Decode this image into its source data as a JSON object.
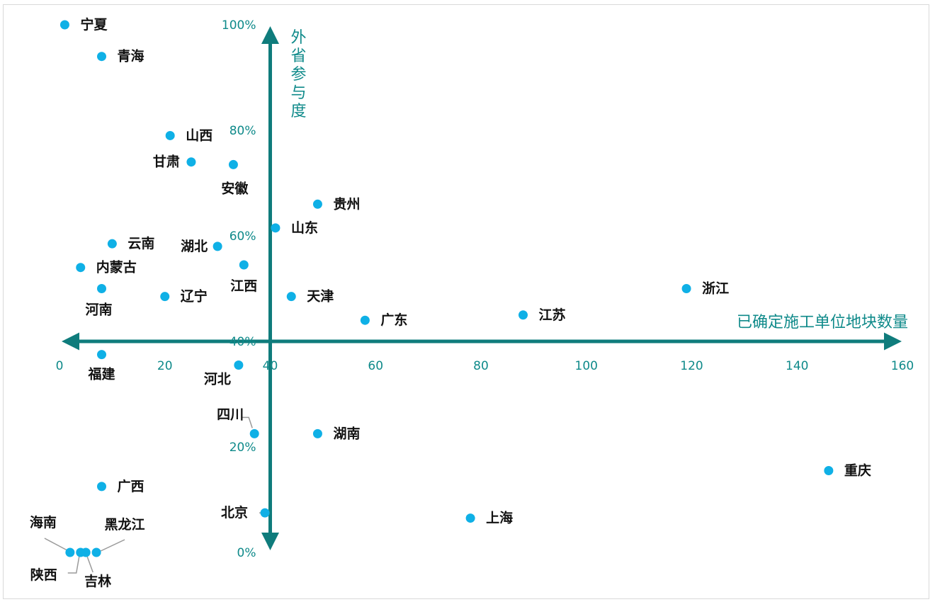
{
  "colors": {
    "axis": "#0f7c7c",
    "tick": "#0f8a8a",
    "point": "#0fb0e6",
    "leader": "#9a9a9a",
    "label": "#111111"
  },
  "chart_data": {
    "type": "scatter",
    "title": "",
    "xlabel": "已确定施工单位地块数量",
    "ylabel": "外省参与度",
    "xlim": [
      0,
      160
    ],
    "ylim": [
      0,
      100
    ],
    "x_ticks": [
      "0",
      "20",
      "40",
      "60",
      "80",
      "100",
      "120",
      "140",
      "160"
    ],
    "y_ticks": [
      "0%",
      "20%",
      "40%",
      "60%",
      "80%",
      "100%"
    ],
    "crosshair": {
      "x": 40,
      "y": 40
    },
    "points": [
      {
        "name": "宁夏",
        "x": 1,
        "y": 100
      },
      {
        "name": "青海",
        "x": 8,
        "y": 94
      },
      {
        "name": "山西",
        "x": 21,
        "y": 79
      },
      {
        "name": "甘肃",
        "x": 25,
        "y": 74
      },
      {
        "name": "安徽",
        "x": 33,
        "y": 73.5
      },
      {
        "name": "贵州",
        "x": 49,
        "y": 66
      },
      {
        "name": "山东",
        "x": 41,
        "y": 61.5
      },
      {
        "name": "云南",
        "x": 10,
        "y": 58.5
      },
      {
        "name": "湖北",
        "x": 30,
        "y": 58
      },
      {
        "name": "内蒙古",
        "x": 4,
        "y": 54
      },
      {
        "name": "江西",
        "x": 35,
        "y": 54.5
      },
      {
        "name": "河南",
        "x": 8,
        "y": 50
      },
      {
        "name": "辽宁",
        "x": 20,
        "y": 48.5
      },
      {
        "name": "天津",
        "x": 44,
        "y": 48.5
      },
      {
        "name": "浙江",
        "x": 119,
        "y": 50
      },
      {
        "name": "江苏",
        "x": 88,
        "y": 45
      },
      {
        "name": "广东",
        "x": 58,
        "y": 44
      },
      {
        "name": "福建",
        "x": 8,
        "y": 37.5
      },
      {
        "name": "河北",
        "x": 34,
        "y": 35.5
      },
      {
        "name": "四川",
        "x": 37,
        "y": 22.5
      },
      {
        "name": "湖南",
        "x": 49,
        "y": 22.5
      },
      {
        "name": "重庆",
        "x": 146,
        "y": 15.5
      },
      {
        "name": "广西",
        "x": 8,
        "y": 12.5
      },
      {
        "name": "北京",
        "x": 39,
        "y": 7.5
      },
      {
        "name": "上海",
        "x": 78,
        "y": 6.5
      },
      {
        "name": "海南",
        "x": 2,
        "y": 0
      },
      {
        "name": "陕西",
        "x": 4,
        "y": 0
      },
      {
        "name": "黑龙江",
        "x": 7,
        "y": 0
      },
      {
        "name": "吉林",
        "x": 5,
        "y": 0
      }
    ]
  }
}
